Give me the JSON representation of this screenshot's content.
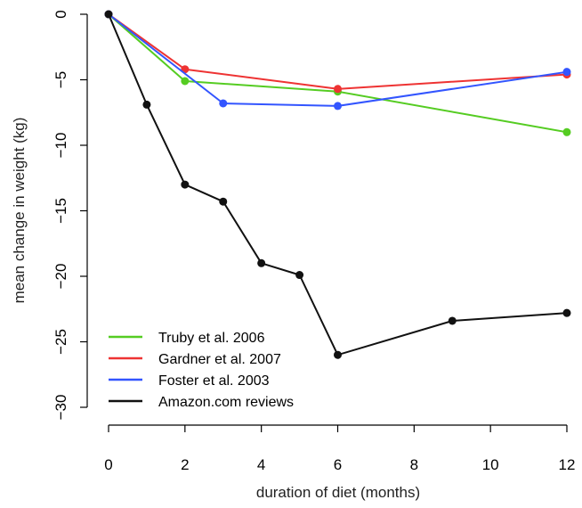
{
  "chart_data": {
    "type": "line",
    "xlabel": "duration of diet (months)",
    "ylabel": "mean change in weight (kg)",
    "xlim": [
      0,
      12
    ],
    "ylim": [
      -30,
      0
    ],
    "xticks": [
      0,
      2,
      4,
      6,
      8,
      10,
      12
    ],
    "yticks": [
      0,
      -5,
      -10,
      -15,
      -20,
      -25,
      -30
    ],
    "xtick_labels": [
      "0",
      "2",
      "4",
      "6",
      "8",
      "10",
      "12"
    ],
    "ytick_labels": [
      "0",
      "−5",
      "−10",
      "−15",
      "−20",
      "−25",
      "−30"
    ],
    "grid": false,
    "legend_position": "bottom-left",
    "series": [
      {
        "name": "Truby et al. 2006",
        "color": "#55cc22",
        "points": [
          [
            0,
            0
          ],
          [
            2,
            -5.1
          ],
          [
            6,
            -5.9
          ],
          [
            12,
            -9.0
          ]
        ]
      },
      {
        "name": "Gardner et al. 2007",
        "color": "#ee3333",
        "points": [
          [
            0,
            0
          ],
          [
            2,
            -4.2
          ],
          [
            6,
            -5.7
          ],
          [
            12,
            -4.6
          ]
        ]
      },
      {
        "name": "Foster et al. 2003",
        "color": "#3355ff",
        "points": [
          [
            0,
            0
          ],
          [
            3,
            -6.8
          ],
          [
            6,
            -7.0
          ],
          [
            12,
            -4.4
          ]
        ]
      },
      {
        "name": "Amazon.com reviews",
        "color": "#111111",
        "points": [
          [
            0,
            0
          ],
          [
            1,
            -6.9
          ],
          [
            2,
            -13.0
          ],
          [
            3,
            -14.3
          ],
          [
            4,
            -19.0
          ],
          [
            5,
            -19.9
          ],
          [
            6,
            -26.0
          ],
          [
            9,
            -23.4
          ],
          [
            12,
            -22.8
          ]
        ]
      }
    ]
  }
}
